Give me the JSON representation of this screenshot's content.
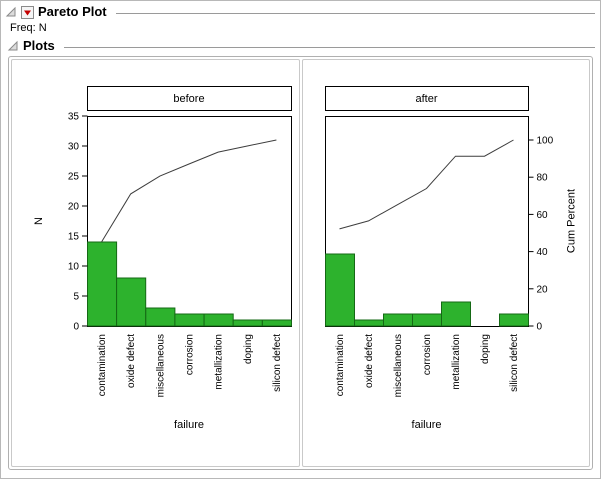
{
  "window": {
    "title": "Pareto Plot",
    "freq_label": "Freq: N",
    "plots_label": "Plots"
  },
  "icons": {
    "disclosure_open": "open-disclosure-triangle",
    "red_triangle_menu": "red-triangle-menu"
  },
  "chart_data": [
    {
      "type": "bar",
      "panel_title": "before",
      "categories": [
        "contamination",
        "oxide defect",
        "miscellaneous",
        "corrosion",
        "metallization",
        "doping",
        "silicon defect"
      ],
      "values": [
        14,
        8,
        3,
        2,
        2,
        1,
        1
      ],
      "cum_percent": [
        45.2,
        71.0,
        80.6,
        87.1,
        93.5,
        96.8,
        100
      ],
      "xlabel": "failure",
      "ylabel": "N",
      "ylim": [
        0,
        35
      ],
      "yticks": [
        0,
        5,
        10,
        15,
        20,
        25,
        30,
        35
      ],
      "n_at_100pct": 31,
      "bar_color": "#2db22d",
      "bar_edge": "#156915",
      "line_color": "#3d3d3d"
    },
    {
      "type": "bar",
      "panel_title": "after",
      "categories": [
        "contamination",
        "oxide defect",
        "miscellaneous",
        "corrosion",
        "metallization",
        "doping",
        "silicon defect"
      ],
      "values": [
        12,
        1,
        2,
        2,
        4,
        0,
        2
      ],
      "cum_percent": [
        52.2,
        56.5,
        65.2,
        73.9,
        91.3,
        91.3,
        100
      ],
      "xlabel": "failure",
      "right_ylabel": "Cum Percent",
      "ylim": [
        0,
        35
      ],
      "right_ticks": [
        0,
        20,
        40,
        60,
        80,
        100
      ],
      "n_at_100pct": 31,
      "bar_color": "#2db22d",
      "bar_edge": "#156915",
      "line_color": "#3d3d3d"
    }
  ]
}
